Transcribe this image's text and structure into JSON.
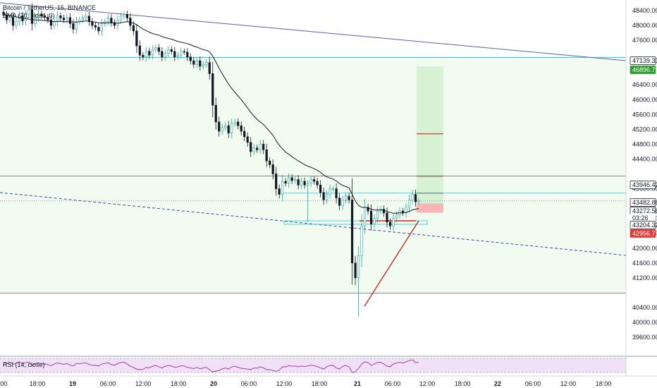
{
  "colors": {
    "up": "#26a69a",
    "down": "#131722",
    "ema": "#131722",
    "trend_blue": "#5b5bb5",
    "dashed_blue": "#2a4dab",
    "cyan_line": "#26c6da",
    "gray_line": "#5d606b",
    "profit_zone": "#d7f2d2",
    "stop_zone": "#f7b5b5",
    "target_red": "#c62828",
    "rsi_line": "#9c27b0",
    "rsi_bg": "#e6c8f0",
    "bg_zone": "#f2fbef",
    "green_tag": "#2e9c2e",
    "red_tag": "#e53935"
  },
  "header": {
    "title": "Bitcoin / TetherUS, 15, BINANCE",
    "ema_label": "EMA (20, close, 0)"
  },
  "rsi": {
    "label": "RSI (14, close)"
  },
  "chart_data": {
    "type": "candlestick",
    "symbol": "Bitcoin / TetherUS",
    "interval": "15",
    "exchange": "BINANCE",
    "indicators": [
      "EMA (20, close, 0)",
      "RSI (14, close)"
    ],
    "y_axis": {
      "range": [
        39600,
        48600
      ],
      "ticks": [
        48400,
        48000,
        47600,
        46400,
        46000,
        45600,
        45200,
        44800,
        44400,
        43600,
        42800,
        42400,
        42000,
        41600,
        41200,
        40400,
        40000,
        39600
      ]
    },
    "x_axis": {
      "tick_labels": [
        ":00",
        "18:00",
        "19",
        "06:00",
        "12:00",
        "18:00",
        "20",
        "06:00",
        "12:00",
        "18:00",
        "21",
        "06:00",
        "12:00",
        "18:00",
        "22",
        "06:00",
        "12:00",
        "18:00"
      ]
    },
    "price_tags": [
      {
        "value": "47139.33",
        "kind": "level"
      },
      {
        "value": "46896.79",
        "kind": "target"
      },
      {
        "value": "43946.42",
        "kind": "level"
      },
      {
        "value": "43482.88",
        "kind": "level"
      },
      {
        "value": "43272.56",
        "kind": "last"
      },
      {
        "value": "03:26",
        "kind": "countdown"
      },
      {
        "value": "43204.32",
        "kind": "level"
      },
      {
        "value": "42956.71",
        "kind": "stop"
      }
    ],
    "horizontal_levels": [
      47139.33,
      43946.42,
      43482.88,
      43272.56,
      40788.14
    ],
    "long_position": {
      "entry": 43204.32,
      "target": 46896.79,
      "stop": 42956.71,
      "intermediate_targets": [
        45080,
        43940,
        43482.88
      ]
    },
    "close_series": [
      48280,
      48150,
      48220,
      48000,
      48100,
      48260,
      48120,
      48300,
      48420,
      48050,
      48200,
      48310,
      48260,
      48220,
      48150,
      48000,
      48100,
      48260,
      48200,
      48150,
      48210,
      48050,
      47900,
      48100,
      48150,
      48200,
      48250,
      48100,
      48000,
      47950,
      47850,
      48050,
      48100,
      48200,
      48080,
      48000,
      48150,
      48250,
      48300,
      48200,
      48000,
      47850,
      47450,
      47200,
      47150,
      47300,
      47200,
      47350,
      47400,
      47300,
      47150,
      47250,
      47350,
      47300,
      47150,
      47200,
      47300,
      47280,
      47150,
      47050,
      46950,
      47050,
      46900,
      46950,
      47000,
      46700,
      45850,
      45400,
      45150,
      45250,
      45300,
      45100,
      45350,
      45400,
      45300,
      45150,
      45000,
      44850,
      44600,
      44700,
      44650,
      44800,
      44650,
      44350,
      44250,
      44000,
      43600,
      43450,
      43800,
      43750,
      43900,
      43820,
      43850,
      43700,
      43800,
      43700,
      43750,
      43850,
      43800,
      43700,
      43500,
      43300,
      43450,
      43600,
      43600,
      43350,
      43150,
      43300,
      43400,
      43300,
      41600,
      41200,
      41800,
      42600,
      43100,
      43000,
      42650,
      42800,
      43000,
      43050,
      42950,
      42700,
      42600,
      42800,
      42900,
      43000,
      42950,
      43100,
      43300,
      43450,
      43250,
      43270
    ],
    "ema_series": [
      48300,
      48280,
      48260,
      48250,
      48230,
      48210,
      48200,
      48180,
      48170,
      48160,
      48150,
      48150,
      48140,
      48130,
      48120,
      48110,
      48100,
      48110,
      48110,
      48100,
      48100,
      48100,
      48090,
      48090,
      48100,
      48110,
      48120,
      48110,
      48100,
      48090,
      48070,
      48070,
      48070,
      48070,
      48070,
      48060,
      48060,
      48070,
      48090,
      48100,
      48080,
      48060,
      48020,
      47960,
      47900,
      47860,
      47820,
      47780,
      47760,
      47740,
      47700,
      47670,
      47650,
      47630,
      47600,
      47570,
      47550,
      47530,
      47510,
      47480,
      47440,
      47420,
      47380,
      47350,
      47330,
      47290,
      47170,
      47020,
      46850,
      46700,
      46560,
      46420,
      46300,
      46200,
      46100,
      46000,
      45890,
      45780,
      45660,
      45560,
      45470,
      45400,
      45330,
      45240,
      45140,
      45040,
      44900,
      44770,
      44680,
      44590,
      44530,
      44460,
      44410,
      44350,
      44300,
      44250,
      44210,
      44180,
      44140,
      44100,
      44040,
      43970,
      43920,
      43890,
      43860,
      43810,
      43740,
      43690,
      43660,
      43620,
      43450,
      43270,
      43150,
      43100,
      43100,
      43090,
      43050,
      43030,
      43030,
      43030,
      43020,
      42990,
      42960,
      42940,
      42940,
      42950,
      42950,
      42960,
      42990,
      43030,
      43050,
      43070
    ],
    "rsi_series": [
      55,
      52,
      56,
      50,
      53,
      58,
      49,
      55,
      57,
      45,
      52,
      54,
      51,
      50,
      48,
      44,
      50,
      54,
      51,
      49,
      52,
      46,
      43,
      52,
      51,
      53,
      54,
      48,
      46,
      45,
      43,
      50,
      52,
      54,
      48,
      46,
      52,
      55,
      57,
      50,
      42,
      38,
      32,
      30,
      31,
      38,
      36,
      42,
      45,
      40,
      36,
      42,
      45,
      43,
      38,
      40,
      44,
      43,
      38,
      36,
      34,
      38,
      33,
      36,
      38,
      30,
      22,
      25,
      27,
      33,
      36,
      32,
      40,
      42,
      38,
      35,
      34,
      32,
      30,
      36,
      35,
      40,
      36,
      30,
      30,
      27,
      24,
      28,
      40,
      40,
      44,
      42,
      43,
      40,
      43,
      41,
      43,
      46,
      44,
      41,
      36,
      32,
      40,
      45,
      45,
      36,
      32,
      42,
      45,
      40,
      20,
      22,
      35,
      50,
      58,
      55,
      45,
      50,
      56,
      56,
      50,
      42,
      40,
      50,
      54,
      56,
      53,
      58,
      62,
      65,
      55,
      56
    ]
  }
}
